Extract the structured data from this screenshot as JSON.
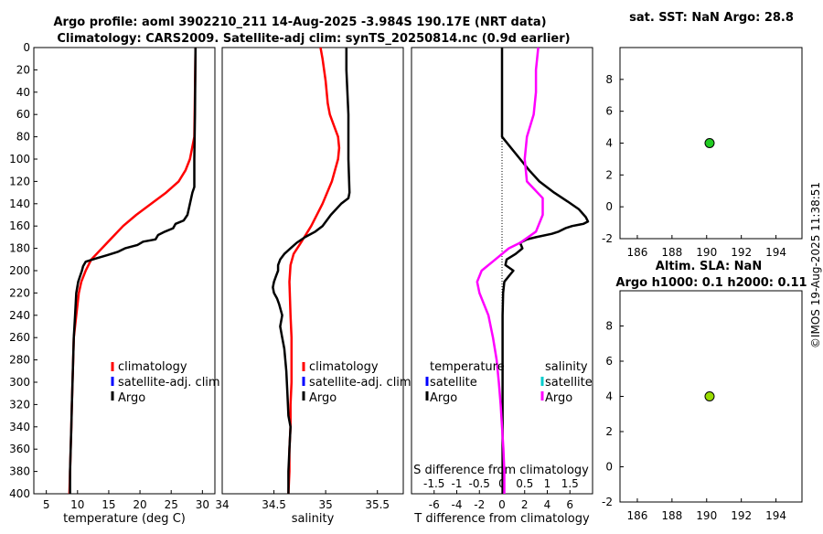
{
  "figure": {
    "title_line1": "Argo profile: aoml 3902210_211 14-Aug-2025 -3.984S 190.17E (NRT data)",
    "title_line2": "Climatology: CARS2009. Satellite-adj clim: synTS_20250814.nc (0.9d earlier)",
    "footer_vertical": "©IMOS 19-Aug-2025 11:38:51"
  },
  "colors": {
    "climatology": "#ff0000",
    "satellite_adj_clim": "#0000ff",
    "argo": "#000000",
    "salinity_satellite": "#00cccc",
    "salinity_argo": "#ff00ff",
    "sst_point": "#22cc22",
    "sla_point": "#99dd00"
  },
  "chart_data": [
    {
      "id": "temperature",
      "type": "line",
      "xlabel": "temperature (deg C)",
      "ylabel": "",
      "xlim": [
        3,
        32
      ],
      "ylim": [
        400,
        0
      ],
      "xticks": [
        5,
        10,
        15,
        20,
        25,
        30
      ],
      "yticks": [
        0,
        20,
        40,
        60,
        80,
        100,
        120,
        140,
        160,
        180,
        200,
        220,
        240,
        260,
        280,
        300,
        320,
        340,
        360,
        380,
        400
      ],
      "legend": [
        "climatology",
        "satellite-adj. clim",
        "Argo"
      ],
      "series": [
        {
          "name": "climatology",
          "color": "#ff0000",
          "points": [
            [
              28.9,
              0
            ],
            [
              28.8,
              40
            ],
            [
              28.7,
              80
            ],
            [
              28.0,
              100
            ],
            [
              27.3,
              110
            ],
            [
              26.2,
              120
            ],
            [
              24.2,
              130
            ],
            [
              21.8,
              140
            ],
            [
              19.4,
              150
            ],
            [
              17.3,
              160
            ],
            [
              15.6,
              170
            ],
            [
              13.9,
              180
            ],
            [
              12.2,
              190
            ],
            [
              11.3,
              200
            ],
            [
              10.6,
              210
            ],
            [
              10.2,
              220
            ],
            [
              9.8,
              240
            ],
            [
              9.4,
              260
            ],
            [
              9.3,
              280
            ],
            [
              9.2,
              300
            ],
            [
              9.1,
              320
            ],
            [
              9.0,
              340
            ],
            [
              8.9,
              360
            ],
            [
              8.8,
              380
            ],
            [
              8.7,
              400
            ]
          ]
        },
        {
          "name": "Argo",
          "color": "#000000",
          "points": [
            [
              28.9,
              0
            ],
            [
              28.8,
              60
            ],
            [
              28.7,
              100
            ],
            [
              28.7,
              125
            ],
            [
              28.4,
              130
            ],
            [
              28.0,
              140
            ],
            [
              27.6,
              150
            ],
            [
              27.0,
              155
            ],
            [
              25.7,
              158
            ],
            [
              25.3,
              162
            ],
            [
              24.0,
              165
            ],
            [
              22.9,
              168
            ],
            [
              22.5,
              172
            ],
            [
              20.5,
              174
            ],
            [
              19.6,
              177
            ],
            [
              17.6,
              180
            ],
            [
              16.5,
              183
            ],
            [
              14.8,
              186
            ],
            [
              13.0,
              189
            ],
            [
              11.3,
              192
            ],
            [
              10.9,
              196
            ],
            [
              10.7,
              200
            ],
            [
              10.4,
              205
            ],
            [
              10.1,
              210
            ],
            [
              9.8,
              220
            ],
            [
              9.6,
              240
            ],
            [
              9.4,
              260
            ],
            [
              9.3,
              280
            ],
            [
              9.2,
              300
            ],
            [
              9.1,
              320
            ],
            [
              9.0,
              340
            ],
            [
              8.9,
              360
            ],
            [
              8.8,
              380
            ],
            [
              8.8,
              400
            ]
          ]
        }
      ]
    },
    {
      "id": "salinity",
      "type": "line",
      "xlabel": "salinity",
      "ylabel": "",
      "xlim": [
        34.0,
        35.75
      ],
      "ylim": [
        400,
        0
      ],
      "xticks": [
        34,
        34.5,
        35,
        35.5
      ],
      "legend": [
        "climatology",
        "satellite-adj. clim",
        "Argo"
      ],
      "series": [
        {
          "name": "climatology",
          "color": "#ff0000",
          "points": [
            [
              34.95,
              0
            ],
            [
              34.97,
              10
            ],
            [
              35.0,
              30
            ],
            [
              35.02,
              50
            ],
            [
              35.04,
              60
            ],
            [
              35.08,
              70
            ],
            [
              35.12,
              80
            ],
            [
              35.13,
              90
            ],
            [
              35.12,
              100
            ],
            [
              35.06,
              120
            ],
            [
              34.97,
              140
            ],
            [
              34.86,
              160
            ],
            [
              34.76,
              175
            ],
            [
              34.69,
              185
            ],
            [
              34.66,
              195
            ],
            [
              34.65,
              210
            ],
            [
              34.66,
              240
            ],
            [
              34.67,
              260
            ],
            [
              34.67,
              280
            ],
            [
              34.67,
              300
            ],
            [
              34.66,
              320
            ],
            [
              34.66,
              340
            ],
            [
              34.65,
              360
            ],
            [
              34.65,
              380
            ],
            [
              34.64,
              400
            ]
          ]
        },
        {
          "name": "Argo",
          "color": "#000000",
          "points": [
            [
              35.2,
              0
            ],
            [
              35.2,
              20
            ],
            [
              35.21,
              40
            ],
            [
              35.22,
              60
            ],
            [
              35.22,
              100
            ],
            [
              35.23,
              130
            ],
            [
              35.22,
              135
            ],
            [
              35.15,
              140
            ],
            [
              35.05,
              150
            ],
            [
              34.97,
              160
            ],
            [
              34.9,
              165
            ],
            [
              34.8,
              170
            ],
            [
              34.72,
              175
            ],
            [
              34.66,
              180
            ],
            [
              34.6,
              185
            ],
            [
              34.56,
              190
            ],
            [
              34.54,
              195
            ],
            [
              34.54,
              200
            ],
            [
              34.52,
              205
            ],
            [
              34.5,
              210
            ],
            [
              34.49,
              215
            ],
            [
              34.5,
              220
            ],
            [
              34.53,
              225
            ],
            [
              34.55,
              230
            ],
            [
              34.58,
              240
            ],
            [
              34.56,
              250
            ],
            [
              34.58,
              260
            ],
            [
              34.6,
              270
            ],
            [
              34.62,
              290
            ],
            [
              34.63,
              310
            ],
            [
              34.64,
              330
            ],
            [
              34.66,
              340
            ],
            [
              34.65,
              360
            ],
            [
              34.64,
              380
            ],
            [
              34.64,
              400
            ]
          ]
        }
      ]
    },
    {
      "id": "difference",
      "type": "line",
      "xlabel": "T difference from climatology",
      "xlabel_top": "S difference from climatology",
      "xlim": [
        -8,
        8
      ],
      "ylim": [
        400,
        0
      ],
      "xticks": [
        -6,
        -4,
        -2,
        0,
        2,
        4,
        6
      ],
      "xticks_salinity": [
        -1.5,
        -1,
        -0.5,
        0,
        0.5,
        1,
        1.5
      ],
      "xticks_salinity_labels": [
        "-1.5",
        "-1",
        "-0.5",
        "0",
        "0.5",
        "1",
        "1.5"
      ],
      "legend_temperature_title": "temperature",
      "legend_salinity_title": "salinity",
      "legend_temperature": [
        "satellite",
        "Argo"
      ],
      "legend_salinity": [
        "satellite",
        "Argo"
      ],
      "series": [
        {
          "name": "T difference Argo",
          "color": "#000000",
          "points": [
            [
              0,
              0
            ],
            [
              0,
              60
            ],
            [
              0,
              80
            ],
            [
              0.8,
              90
            ],
            [
              1.6,
              100
            ],
            [
              2.4,
              110
            ],
            [
              3.3,
              120
            ],
            [
              4.6,
              130
            ],
            [
              5.8,
              138
            ],
            [
              6.8,
              145
            ],
            [
              7.4,
              152
            ],
            [
              7.6,
              156
            ],
            [
              7.2,
              158
            ],
            [
              6.2,
              160
            ],
            [
              5.6,
              162
            ],
            [
              5.0,
              165
            ],
            [
              4.4,
              167
            ],
            [
              3.0,
              170
            ],
            [
              2.2,
              172
            ],
            [
              1.6,
              175
            ],
            [
              1.8,
              180
            ],
            [
              1.2,
              185
            ],
            [
              0.4,
              190
            ],
            [
              0.3,
              195
            ],
            [
              1.0,
              200
            ],
            [
              0.6,
              205
            ],
            [
              0.2,
              210
            ],
            [
              0.1,
              220
            ],
            [
              0.05,
              240
            ],
            [
              0.05,
              300
            ],
            [
              0.05,
              400
            ]
          ]
        },
        {
          "name": "S difference Argo",
          "color": "#ff00ff",
          "points": [
            [
              0.8,
              0
            ],
            [
              0.75,
              20
            ],
            [
              0.75,
              40
            ],
            [
              0.7,
              60
            ],
            [
              0.55,
              80
            ],
            [
              0.5,
              100
            ],
            [
              0.55,
              120
            ],
            [
              0.9,
              135
            ],
            [
              0.9,
              150
            ],
            [
              0.75,
              165
            ],
            [
              0.4,
              175
            ],
            [
              0.15,
              180
            ],
            [
              -0.15,
              190
            ],
            [
              -0.45,
              200
            ],
            [
              -0.55,
              210
            ],
            [
              -0.5,
              220
            ],
            [
              -0.4,
              230
            ],
            [
              -0.3,
              240
            ],
            [
              -0.2,
              260
            ],
            [
              -0.12,
              280
            ],
            [
              -0.07,
              300
            ],
            [
              -0.03,
              320
            ],
            [
              0.0,
              340
            ],
            [
              0.03,
              360
            ],
            [
              0.05,
              380
            ],
            [
              0.05,
              400
            ]
          ]
        }
      ]
    },
    {
      "id": "sat_sst",
      "type": "scatter",
      "title": "sat. SST: NaN Argo: 28.8",
      "xlim": [
        185,
        195.5
      ],
      "ylim": [
        -2,
        10
      ],
      "xticks": [
        186,
        188,
        190,
        192,
        194
      ],
      "yticks": [
        -2,
        0,
        2,
        4,
        6,
        8
      ],
      "points": [
        [
          190.17,
          4
        ]
      ]
    },
    {
      "id": "altim_sla",
      "type": "scatter",
      "title": "Altim. SLA: NaN",
      "subtitle": "Argo h1000: 0.1 h2000: 0.11",
      "xlim": [
        185,
        195.5
      ],
      "ylim": [
        -2,
        10
      ],
      "xticks": [
        186,
        188,
        190,
        192,
        194
      ],
      "yticks": [
        -2,
        0,
        2,
        4,
        6,
        8
      ],
      "points": [
        [
          190.17,
          4
        ]
      ]
    }
  ]
}
